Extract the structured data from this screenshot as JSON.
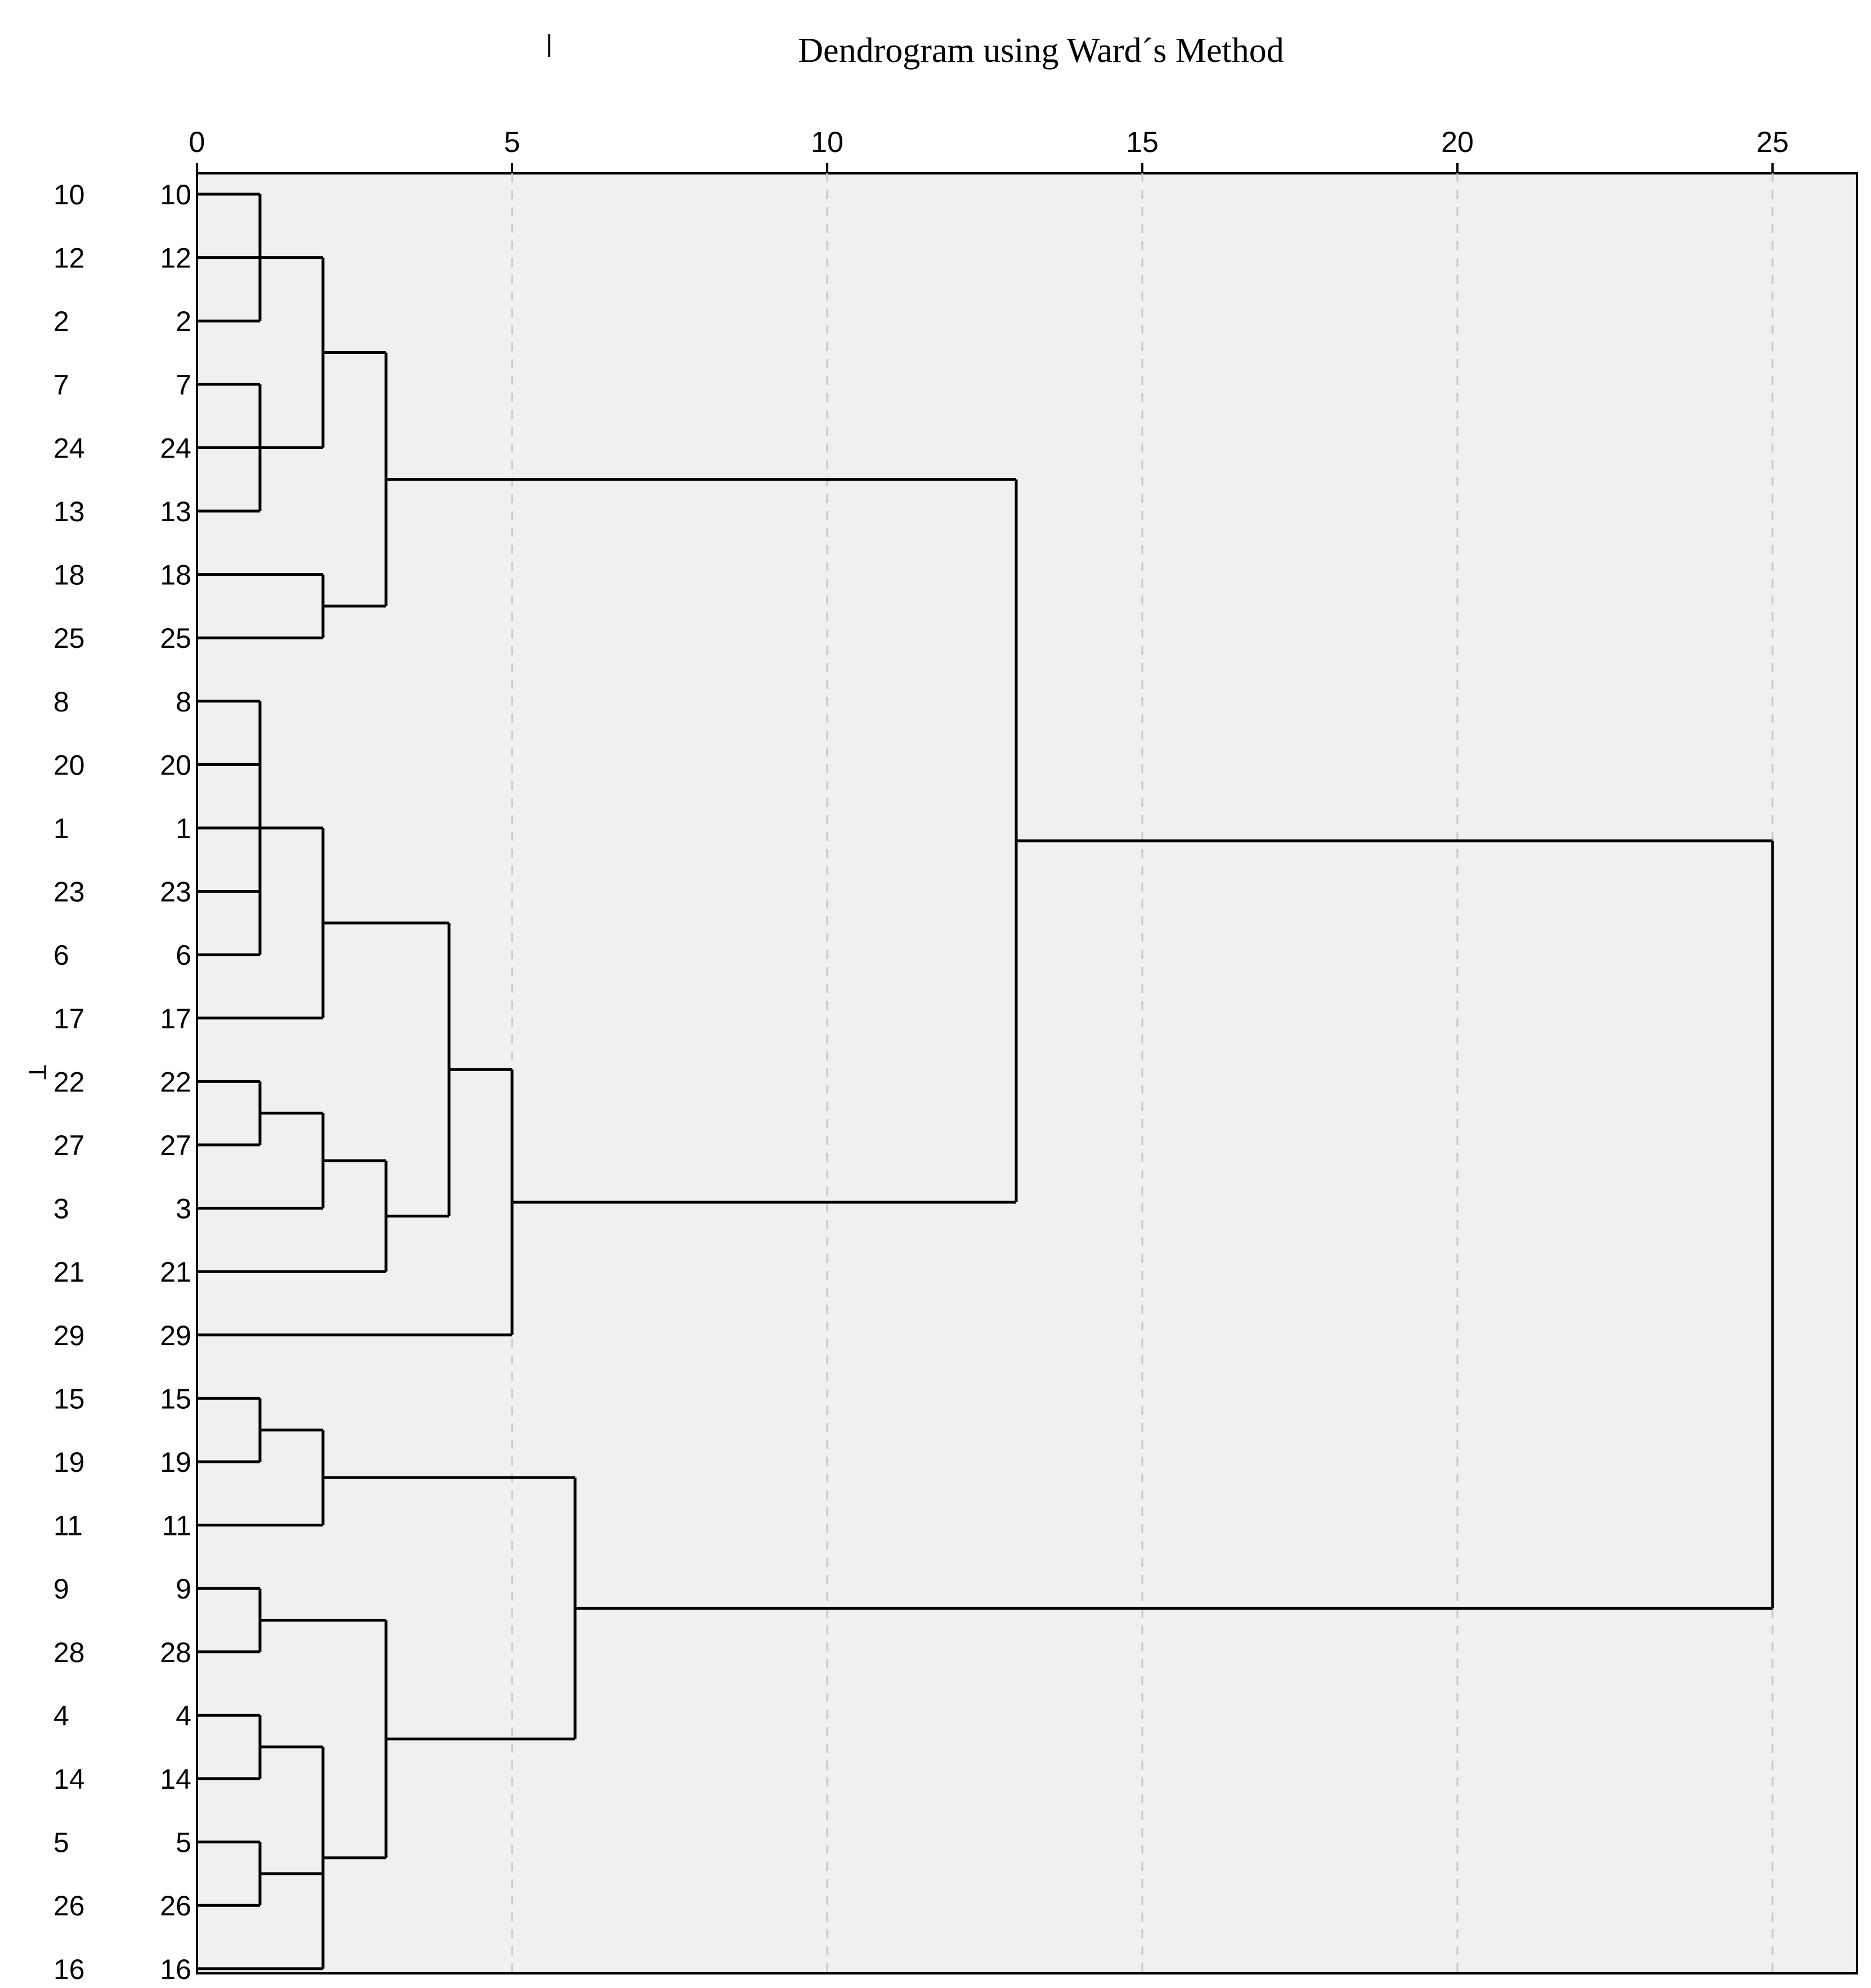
{
  "chart_data": {
    "type": "dendrogram",
    "title": "Dendrogram using Ward´s Method",
    "orientation": "horizontal",
    "x_ticks": [
      0,
      5,
      10,
      15,
      20,
      25
    ],
    "xlim": [
      0,
      26.3
    ],
    "leaves": [
      "10",
      "12",
      "2",
      "7",
      "24",
      "13",
      "18",
      "25",
      "8",
      "20",
      "1",
      "23",
      "6",
      "17",
      "22",
      "27",
      "3",
      "21",
      "29",
      "15",
      "19",
      "11",
      "9",
      "28",
      "4",
      "14",
      "5",
      "26",
      "16"
    ],
    "merges": [
      {
        "id": "A1",
        "children": [
          "10",
          "12",
          "2"
        ],
        "height": 1
      },
      {
        "id": "A2",
        "children": [
          "7",
          "24",
          "13"
        ],
        "height": 1
      },
      {
        "id": "A3",
        "children": [
          "A1",
          "A2"
        ],
        "height": 2
      },
      {
        "id": "A4",
        "children": [
          "18",
          "25"
        ],
        "height": 2
      },
      {
        "id": "A5",
        "children": [
          "A3",
          "A4"
        ],
        "height": 3
      },
      {
        "id": "B1",
        "children": [
          "8",
          "20",
          "1",
          "23",
          "6"
        ],
        "height": 1
      },
      {
        "id": "B2",
        "children": [
          "B1",
          "17"
        ],
        "height": 2
      },
      {
        "id": "B3",
        "children": [
          "22",
          "27"
        ],
        "height": 1
      },
      {
        "id": "B4",
        "children": [
          "B3",
          "3"
        ],
        "height": 2
      },
      {
        "id": "B5",
        "children": [
          "B4",
          "21"
        ],
        "height": 3
      },
      {
        "id": "B6",
        "children": [
          "B2",
          "B5"
        ],
        "height": 4
      },
      {
        "id": "B7",
        "children": [
          "B6",
          "29"
        ],
        "height": 5
      },
      {
        "id": "AB",
        "children": [
          "A5",
          "B7"
        ],
        "height": 13
      },
      {
        "id": "C1",
        "children": [
          "15",
          "19"
        ],
        "height": 1
      },
      {
        "id": "C2",
        "children": [
          "C1",
          "11"
        ],
        "height": 2
      },
      {
        "id": "C3",
        "children": [
          "9",
          "28"
        ],
        "height": 1
      },
      {
        "id": "C4",
        "children": [
          "4",
          "14"
        ],
        "height": 1
      },
      {
        "id": "C5",
        "children": [
          "5",
          "26"
        ],
        "height": 1
      },
      {
        "id": "C6",
        "children": [
          "C4",
          "C5",
          "16"
        ],
        "height": 2
      },
      {
        "id": "C7",
        "children": [
          "C3",
          "C6"
        ],
        "height": 3
      },
      {
        "id": "C8",
        "children": [
          "C2",
          "C7"
        ],
        "height": 6
      },
      {
        "id": "ROOT",
        "children": [
          "AB",
          "C8"
        ],
        "height": 25
      }
    ]
  },
  "stray_marks": {
    "top": "|",
    "left": "T"
  }
}
